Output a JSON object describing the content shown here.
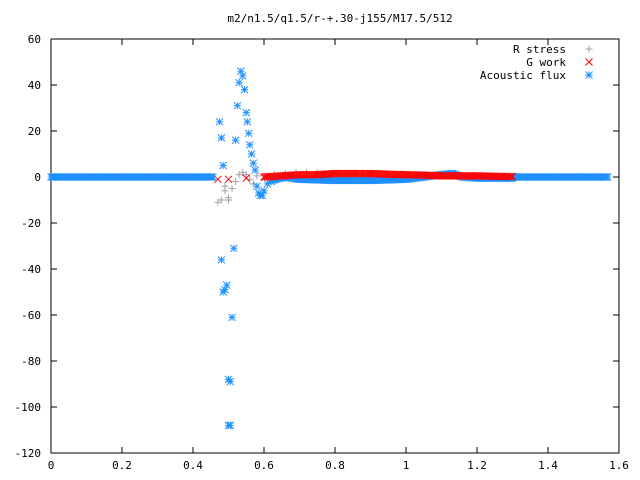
{
  "chart_data": {
    "type": "scatter",
    "title": "m2/n1.5/q1.5/r-+.30-j155/M17.5/512",
    "xlabel": "",
    "ylabel": "",
    "xlim": [
      0,
      1.6
    ],
    "ylim": [
      -120,
      60
    ],
    "x_ticks": [
      "0",
      "0.2",
      "0.4",
      "0.6",
      "0.8",
      "1",
      "1.2",
      "1.4",
      "1.6"
    ],
    "y_ticks": [
      "60",
      "40",
      "20",
      "0",
      "-20",
      "-40",
      "-60",
      "-80",
      "-100",
      "-120"
    ],
    "grid": false,
    "legend_position": "top-right",
    "series": [
      {
        "name": "R stress",
        "marker": "+",
        "color": "#a0a0a0",
        "points": [
          [
            0.47,
            -11
          ],
          [
            0.48,
            -10
          ],
          [
            0.49,
            -6
          ],
          [
            0.49,
            -4
          ],
          [
            0.5,
            -9
          ],
          [
            0.5,
            -10
          ],
          [
            0.51,
            -5
          ],
          [
            0.52,
            -2
          ],
          [
            0.53,
            1
          ],
          [
            0.54,
            2
          ],
          [
            0.55,
            1
          ],
          [
            0.56,
            -1
          ],
          [
            0.57,
            -3
          ],
          [
            0.58,
            0.5
          ],
          [
            0.6,
            0.5
          ],
          [
            0.63,
            1
          ],
          [
            0.66,
            1.5
          ],
          [
            0.69,
            2
          ],
          [
            0.72,
            2
          ],
          [
            0.75,
            1.8
          ],
          [
            0.8,
            1.5
          ],
          [
            0.9,
            1
          ],
          [
            1.0,
            0.5
          ],
          [
            1.2,
            0.2
          ]
        ]
      },
      {
        "name": "G work",
        "marker": "x",
        "color": "#ff0000",
        "points": [
          [
            0.47,
            -1
          ],
          [
            0.5,
            -1
          ],
          [
            0.55,
            -0.5
          ],
          [
            0.6,
            0
          ],
          [
            0.65,
            0.5
          ],
          [
            0.7,
            1
          ],
          [
            0.75,
            1
          ],
          [
            0.8,
            1.5
          ],
          [
            0.85,
            1.5
          ],
          [
            0.9,
            1.5
          ],
          [
            0.95,
            1.2
          ],
          [
            1.0,
            1
          ],
          [
            1.05,
            0.8
          ],
          [
            1.1,
            0.5
          ],
          [
            1.15,
            0.5
          ],
          [
            1.2,
            0.5
          ],
          [
            1.25,
            0.3
          ],
          [
            1.3,
            0.2
          ]
        ]
      },
      {
        "name": "Acoustic flux",
        "marker": "*",
        "color": "#1e90ff",
        "points": [
          [
            0.475,
            24
          ],
          [
            0.48,
            17
          ],
          [
            0.485,
            5
          ],
          [
            0.48,
            -36
          ],
          [
            0.485,
            -50
          ],
          [
            0.49,
            -49
          ],
          [
            0.495,
            -47
          ],
          [
            0.5,
            -88
          ],
          [
            0.505,
            -89
          ],
          [
            0.5,
            -108
          ],
          [
            0.505,
            -108
          ],
          [
            0.51,
            -61
          ],
          [
            0.515,
            -31
          ],
          [
            0.52,
            16
          ],
          [
            0.525,
            31
          ],
          [
            0.53,
            41
          ],
          [
            0.535,
            46
          ],
          [
            0.54,
            44
          ],
          [
            0.545,
            38
          ],
          [
            0.55,
            28
          ],
          [
            0.553,
            24
          ],
          [
            0.557,
            19
          ],
          [
            0.56,
            14
          ],
          [
            0.565,
            10
          ],
          [
            0.57,
            6
          ],
          [
            0.575,
            3
          ],
          [
            0.58,
            -4
          ],
          [
            0.585,
            -7
          ],
          [
            0.59,
            -8
          ],
          [
            0.595,
            -8
          ],
          [
            0.6,
            -6
          ],
          [
            0.61,
            -3
          ],
          [
            0.63,
            -1
          ],
          [
            0.66,
            0
          ],
          [
            0.7,
            -1
          ],
          [
            0.8,
            -1.5
          ],
          [
            0.9,
            -1.5
          ],
          [
            1.0,
            -1
          ],
          [
            1.05,
            0
          ],
          [
            1.1,
            1
          ],
          [
            1.13,
            1.5
          ],
          [
            1.16,
            0
          ],
          [
            1.2,
            -0.5
          ],
          [
            1.3,
            -0.5
          ]
        ]
      }
    ]
  }
}
